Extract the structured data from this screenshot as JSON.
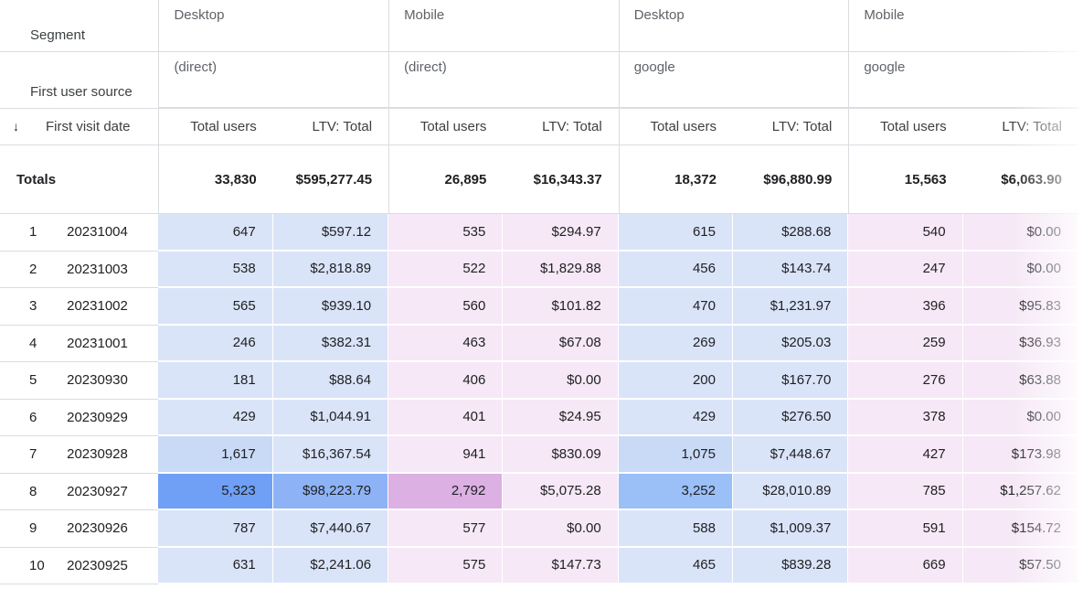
{
  "dimensions": {
    "segment_label": "Segment",
    "source_label": "First user source",
    "date_label": "First visit date",
    "sort_icon": "arrow-down-icon"
  },
  "column_groups": [
    {
      "segment": "Desktop",
      "source": "(direct)",
      "tone": "blue"
    },
    {
      "segment": "Mobile",
      "source": "(direct)",
      "tone": "pink"
    },
    {
      "segment": "Desktop",
      "source": "google",
      "tone": "blue"
    },
    {
      "segment": "Mobile",
      "source": "google",
      "tone": "pink"
    }
  ],
  "metrics": [
    "Total users",
    "LTV: Total"
  ],
  "totals": {
    "label": "Totals",
    "values": [
      "33,830",
      "$595,277.45",
      "26,895",
      "$16,343.37",
      "18,372",
      "$96,880.99",
      "15,563",
      "$6,063.90"
    ]
  },
  "rows": [
    {
      "index": "1",
      "date": "20231004",
      "values": [
        "647",
        "$597.12",
        "535",
        "$294.97",
        "615",
        "$288.68",
        "540",
        "$0.00"
      ]
    },
    {
      "index": "2",
      "date": "20231003",
      "values": [
        "538",
        "$2,818.89",
        "522",
        "$1,829.88",
        "456",
        "$143.74",
        "247",
        "$0.00"
      ]
    },
    {
      "index": "3",
      "date": "20231002",
      "values": [
        "565",
        "$939.10",
        "560",
        "$101.82",
        "470",
        "$1,231.97",
        "396",
        "$95.83"
      ]
    },
    {
      "index": "4",
      "date": "20231001",
      "values": [
        "246",
        "$382.31",
        "463",
        "$67.08",
        "269",
        "$205.03",
        "259",
        "$36.93"
      ]
    },
    {
      "index": "5",
      "date": "20230930",
      "values": [
        "181",
        "$88.64",
        "406",
        "$0.00",
        "200",
        "$167.70",
        "276",
        "$63.88"
      ]
    },
    {
      "index": "6",
      "date": "20230929",
      "values": [
        "429",
        "$1,044.91",
        "401",
        "$24.95",
        "429",
        "$276.50",
        "378",
        "$0.00"
      ]
    },
    {
      "index": "7",
      "date": "20230928",
      "values": [
        "1,617",
        "$16,367.54",
        "941",
        "$830.09",
        "1,075",
        "$7,448.67",
        "427",
        "$173.98"
      ]
    },
    {
      "index": "8",
      "date": "20230927",
      "values": [
        "5,323",
        "$98,223.79",
        "2,792",
        "$5,075.28",
        "3,252",
        "$28,010.89",
        "785",
        "$1,257.62"
      ]
    },
    {
      "index": "9",
      "date": "20230926",
      "values": [
        "787",
        "$7,440.67",
        "577",
        "$0.00",
        "588",
        "$1,009.37",
        "591",
        "$154.72"
      ]
    },
    {
      "index": "10",
      "date": "20230925",
      "values": [
        "631",
        "$2,241.06",
        "575",
        "$147.73",
        "465",
        "$839.28",
        "669",
        "$57.50"
      ]
    }
  ],
  "highlight_colors": {
    "blue_base": "#dae4f8",
    "blue_mid": "#c9daf6",
    "blue_strong": "#9bbff7",
    "blue_max": "#6fa0f6",
    "pink_base": "#f6e8f6",
    "pink_max": "#dcb0e3"
  },
  "cell_highlights": [
    {
      "row": 6,
      "col": 0,
      "color": "#c9daf6"
    },
    {
      "row": 6,
      "col": 4,
      "color": "#c9daf6"
    },
    {
      "row": 7,
      "col": 0,
      "color": "#6fa0f6"
    },
    {
      "row": 7,
      "col": 1,
      "color": "#8db3f6"
    },
    {
      "row": 7,
      "col": 2,
      "color": "#dcb0e3"
    },
    {
      "row": 7,
      "col": 4,
      "color": "#9bbff7"
    }
  ]
}
